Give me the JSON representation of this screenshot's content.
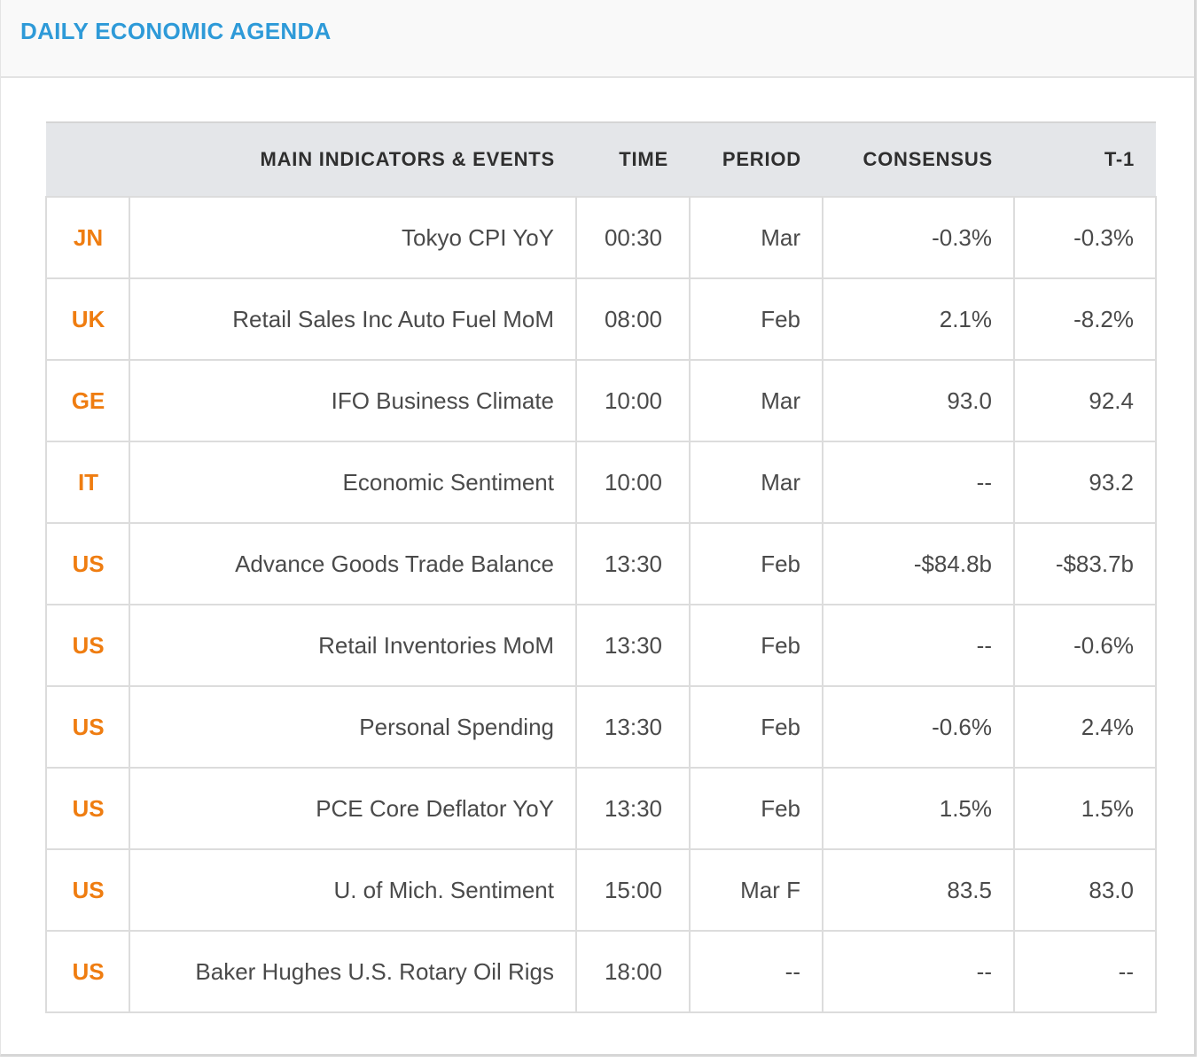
{
  "panel": {
    "title": "DAILY ECONOMIC AGENDA"
  },
  "table": {
    "headers": {
      "country": "",
      "indicator": "MAIN INDICATORS & EVENTS",
      "time": "TIME",
      "period": "PERIOD",
      "consensus": "CONSENSUS",
      "prior": "T-1"
    },
    "rows": [
      {
        "country": "JN",
        "indicator": "Tokyo CPI YoY",
        "time": "00:30",
        "period": "Mar",
        "consensus": "-0.3%",
        "prior": "-0.3%"
      },
      {
        "country": "UK",
        "indicator": "Retail Sales Inc Auto Fuel MoM",
        "time": "08:00",
        "period": "Feb",
        "consensus": "2.1%",
        "prior": "-8.2%"
      },
      {
        "country": "GE",
        "indicator": "IFO Business Climate",
        "time": "10:00",
        "period": "Mar",
        "consensus": "93.0",
        "prior": "92.4"
      },
      {
        "country": "IT",
        "indicator": "Economic Sentiment",
        "time": "10:00",
        "period": "Mar",
        "consensus": "--",
        "prior": "93.2"
      },
      {
        "country": "US",
        "indicator": "Advance Goods Trade Balance",
        "time": "13:30",
        "period": "Feb",
        "consensus": "-$84.8b",
        "prior": "-$83.7b"
      },
      {
        "country": "US",
        "indicator": "Retail Inventories MoM",
        "time": "13:30",
        "period": "Feb",
        "consensus": "--",
        "prior": "-0.6%"
      },
      {
        "country": "US",
        "indicator": "Personal Spending",
        "time": "13:30",
        "period": "Feb",
        "consensus": "-0.6%",
        "prior": "2.4%"
      },
      {
        "country": "US",
        "indicator": "PCE Core Deflator YoY",
        "time": "13:30",
        "period": "Feb",
        "consensus": "1.5%",
        "prior": "1.5%"
      },
      {
        "country": "US",
        "indicator": "U. of Mich. Sentiment",
        "time": "15:00",
        "period": "Mar F",
        "consensus": "83.5",
        "prior": "83.0"
      },
      {
        "country": "US",
        "indicator": "Baker Hughes U.S. Rotary Oil Rigs",
        "time": "18:00",
        "period": "--",
        "consensus": "--",
        "prior": "--"
      }
    ]
  },
  "colors": {
    "title": "#2e9ad8",
    "country": "#ef7d11",
    "header_bg": "#e4e6e9",
    "text": "#4a4a4a"
  }
}
